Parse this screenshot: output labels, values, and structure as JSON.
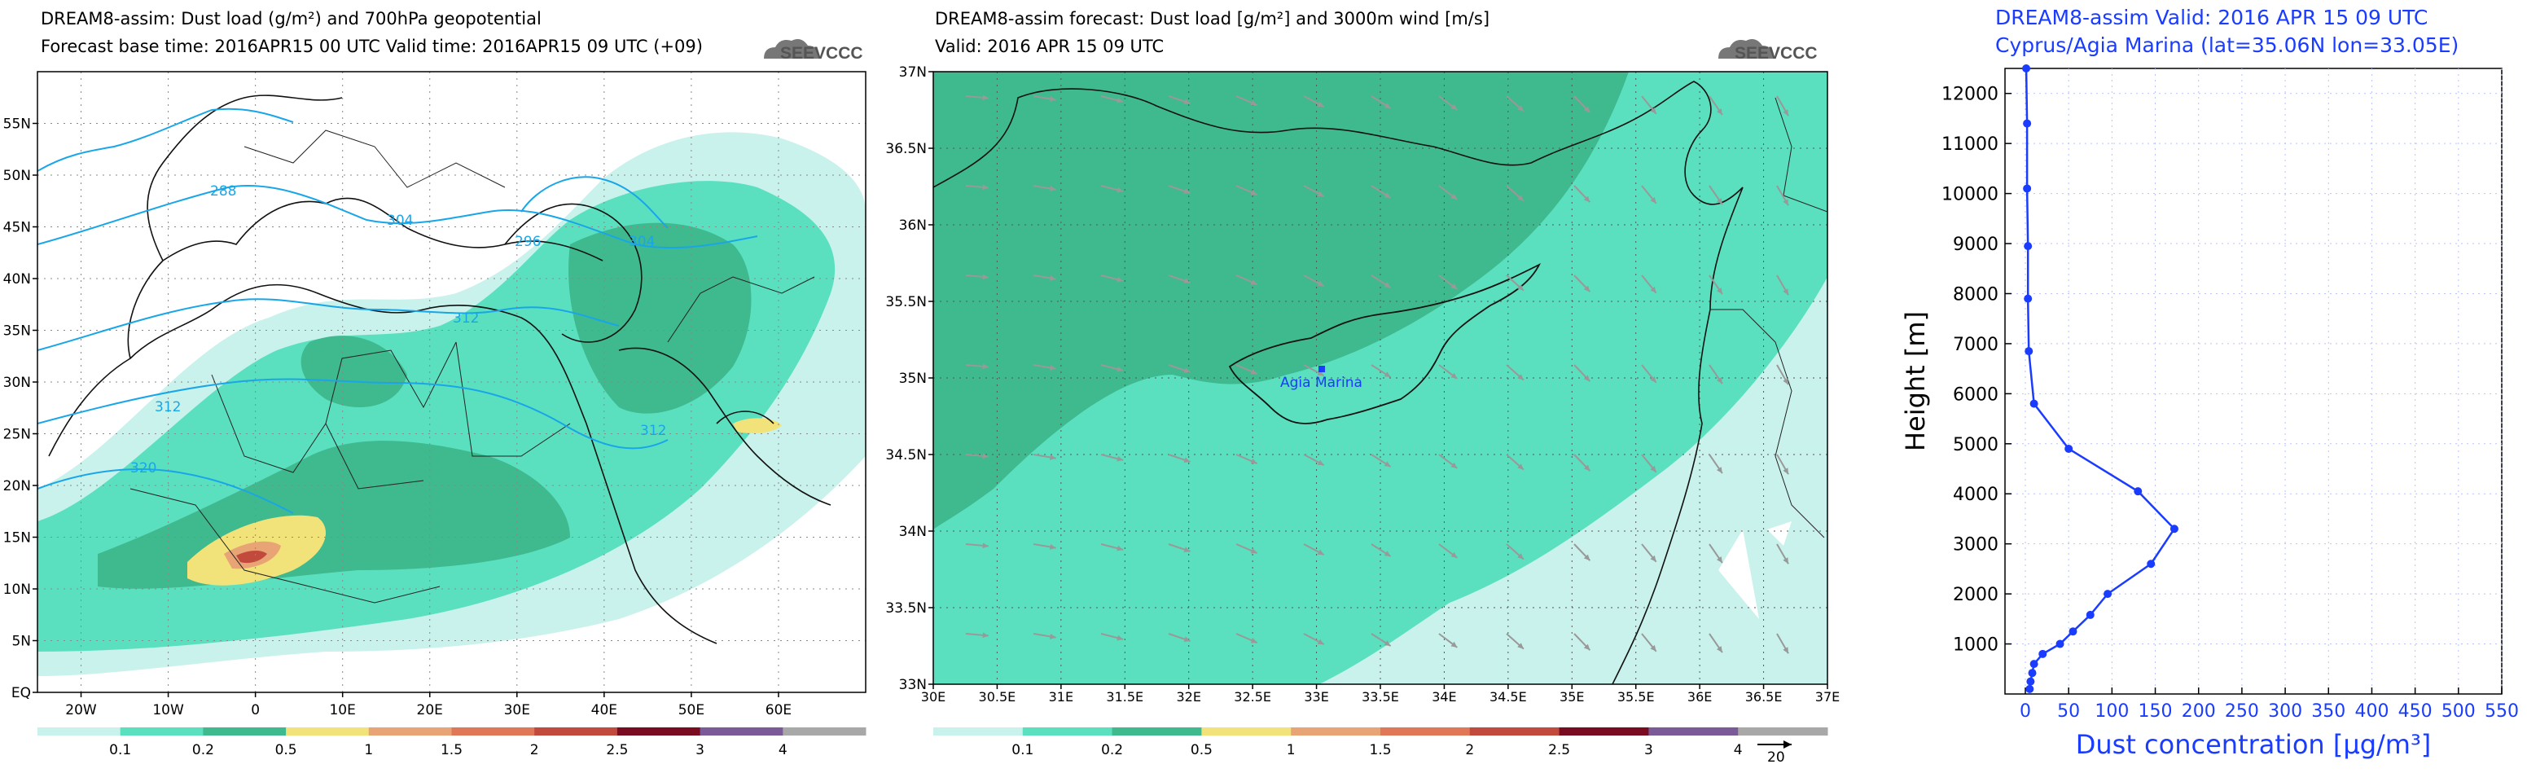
{
  "panel1": {
    "title_line1": "DREAM8-assim: Dust load (g/m²) and 700hPa geopotential",
    "title_line2": "Forecast base time: 2016APR15 00 UTC  Valid time: 2016APR15 09 UTC  (+09)",
    "logo": "SEEVCCC",
    "x_ticks": [
      "20W",
      "10W",
      "0",
      "10E",
      "20E",
      "30E",
      "40E",
      "50E",
      "60E"
    ],
    "y_ticks": [
      "EQ",
      "5N",
      "10N",
      "15N",
      "20N",
      "25N",
      "30N",
      "35N",
      "40N",
      "45N",
      "50N",
      "55N"
    ],
    "contour_labels": [
      "288",
      "304",
      "296",
      "304",
      "312",
      "312",
      "312",
      "320"
    ],
    "colorbar_labels": [
      "0.1",
      "0.2",
      "0.5",
      "1",
      "1.5",
      "2",
      "2.5",
      "3",
      "4"
    ],
    "colorbar_colors": [
      "#c9f2ec",
      "#5ae0bf",
      "#3fb98e",
      "#f2e27a",
      "#e9a476",
      "#e07858",
      "#c14a3c",
      "#7a0c22",
      "#7b5a98",
      "#a8a8a8"
    ]
  },
  "panel2": {
    "title_line1": "DREAM8-assim forecast: Dust load [g/m²] and 3000m wind [m/s]",
    "title_line2": "Valid: 2016 APR 15  09 UTC",
    "logo": "SEEVCCC",
    "station_label": "Agia Marina",
    "x_ticks": [
      "30E",
      "30.5E",
      "31E",
      "31.5E",
      "32E",
      "32.5E",
      "33E",
      "33.5E",
      "34E",
      "34.5E",
      "35E",
      "35.5E",
      "36E",
      "36.5E",
      "37E"
    ],
    "y_ticks": [
      "33N",
      "33.5N",
      "34N",
      "34.5N",
      "35N",
      "35.5N",
      "36N",
      "36.5N",
      "37N"
    ],
    "colorbar_labels": [
      "0.1",
      "0.2",
      "0.5",
      "1",
      "1.5",
      "2",
      "2.5",
      "3",
      "4"
    ],
    "wind_ref_label": "20"
  },
  "chart_data": {
    "type": "line",
    "title": "DREAM8-assim   Valid: 2016 APR 15   09 UTC",
    "subtitle": "Cyprus/Agia Marina (lat=35.06N lon=33.05E)",
    "xlabel": "Dust concentration [µg/m³]",
    "ylabel": "Height [m]",
    "xlim": [
      0,
      550
    ],
    "ylim": [
      0,
      12500
    ],
    "x_ticks": [
      0,
      50,
      100,
      150,
      200,
      250,
      300,
      350,
      400,
      450,
      500,
      550
    ],
    "y_ticks": [
      1000,
      2000,
      3000,
      4000,
      5000,
      6000,
      7000,
      8000,
      9000,
      10000,
      11000,
      12000
    ],
    "grid": true,
    "points": [
      {
        "x": 5,
        "y": 100
      },
      {
        "x": 6,
        "y": 250
      },
      {
        "x": 8,
        "y": 420
      },
      {
        "x": 10,
        "y": 600
      },
      {
        "x": 20,
        "y": 800
      },
      {
        "x": 40,
        "y": 1000
      },
      {
        "x": 55,
        "y": 1250
      },
      {
        "x": 75,
        "y": 1580
      },
      {
        "x": 95,
        "y": 2000
      },
      {
        "x": 145,
        "y": 2600
      },
      {
        "x": 172,
        "y": 3300
      },
      {
        "x": 130,
        "y": 4050
      },
      {
        "x": 50,
        "y": 4900
      },
      {
        "x": 10,
        "y": 5800
      },
      {
        "x": 4,
        "y": 6850
      },
      {
        "x": 3,
        "y": 7900
      },
      {
        "x": 3,
        "y": 8950
      },
      {
        "x": 2,
        "y": 10100
      },
      {
        "x": 2,
        "y": 11400
      },
      {
        "x": 1,
        "y": 12700
      }
    ]
  }
}
